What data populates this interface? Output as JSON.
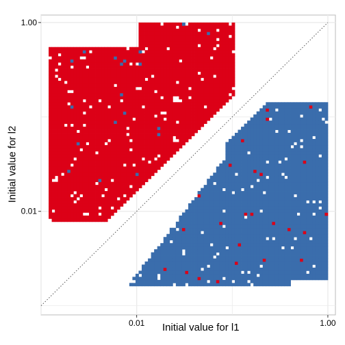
{
  "chart_data": {
    "type": "heatmap",
    "title": "",
    "xlabel": "Initial value for l1",
    "ylabel": "Initial value for l2",
    "x_scale": "log10",
    "y_scale": "log10",
    "xlim": [
      0.001,
      1.2
    ],
    "ylim": [
      0.0008,
      1.2
    ],
    "x_ticks": [
      {
        "value": 0.01,
        "label": "0.01"
      },
      {
        "value": 1,
        "label": "1.00"
      }
    ],
    "y_ticks": [
      {
        "value": 0.01,
        "label": "0.01"
      },
      {
        "value": 1,
        "label": "1.00"
      }
    ],
    "grid": true,
    "legend": "none",
    "reference_line": {
      "type": "identity",
      "style": "dotted",
      "from": 0.001,
      "to": 1
    },
    "colors": {
      "red": "#DC0017",
      "blue": "#3A6DAC",
      "dotted_line": "#555555",
      "grid": "#EBEBEB",
      "border": "#BBBBBB"
    },
    "regions": [
      {
        "name": "red",
        "description": "cells where l2 > l1",
        "x_range": [
          0.001,
          0.1
        ],
        "y_range": [
          0.0075,
          1.0
        ]
      },
      {
        "name": "blue",
        "description": "cells where l1 > l2",
        "x_range": [
          0.007,
          1.0
        ],
        "y_range": [
          0.001,
          0.14
        ]
      }
    ]
  }
}
